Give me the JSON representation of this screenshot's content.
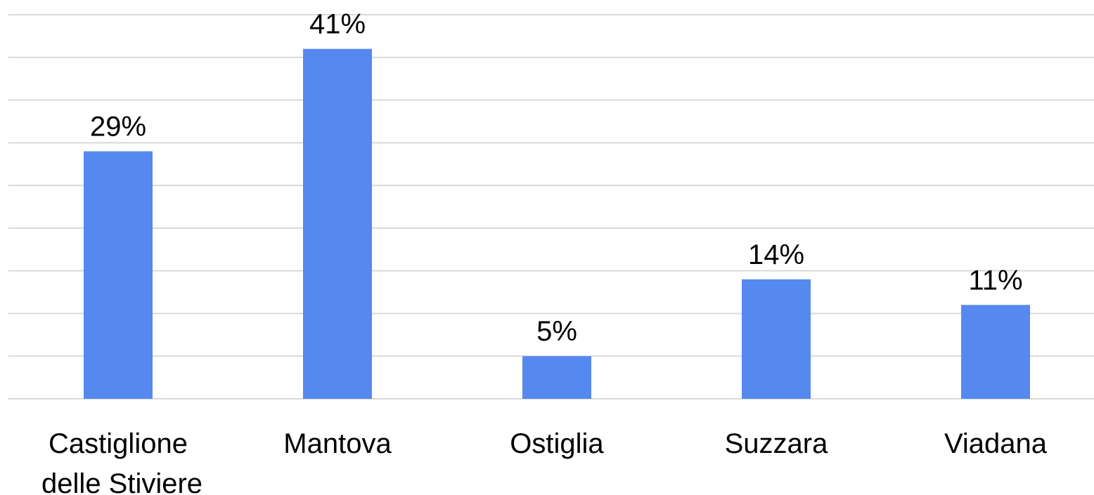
{
  "chart_data": {
    "type": "bar",
    "categories": [
      "Castiglione delle Stiviere",
      "Mantova",
      "Ostiglia",
      "Suzzara",
      "Viadana"
    ],
    "values": [
      29,
      41,
      5,
      14,
      11
    ],
    "value_labels": [
      "29%",
      "41%",
      "5%",
      "14%",
      "11%"
    ],
    "color": "#5589f0",
    "ylim": [
      0,
      45
    ],
    "yticks": [
      0,
      5,
      10,
      15,
      20,
      25,
      30,
      35,
      40,
      45
    ],
    "grid": true,
    "ytick_labels": false
  }
}
